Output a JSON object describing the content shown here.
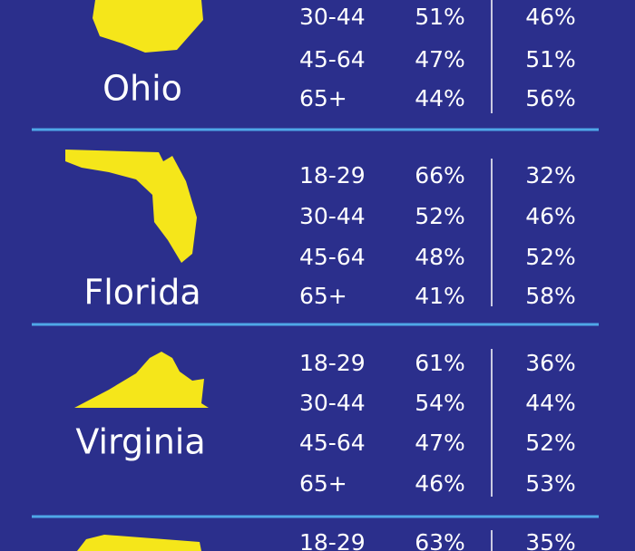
{
  "states": [
    {
      "name": "Ohio",
      "rows": [
        {
          "age": "30-44",
          "dem": "51%",
          "rep": "46%",
          "dem_color": "#2ea8e6",
          "rep_color": "#ffffff"
        },
        {
          "age": "45-64",
          "dem": "47%",
          "rep": "51%",
          "dem_color": "#ffffff",
          "rep_color": "#e0283c"
        },
        {
          "age": "65+",
          "dem": "44%",
          "rep": "56%",
          "dem_color": "#ffffff",
          "rep_color": "#e0283c"
        }
      ]
    },
    {
      "name": "Florida",
      "rows": [
        {
          "age": "18-29",
          "dem": "66%",
          "rep": "32%",
          "dem_color": "#2ea8e6",
          "rep_color": "#ffffff"
        },
        {
          "age": "30-44",
          "dem": "52%",
          "rep": "46%",
          "dem_color": "#2ea8e6",
          "rep_color": "#ffffff"
        },
        {
          "age": "45-64",
          "dem": "48%",
          "rep": "52%",
          "dem_color": "#ffffff",
          "rep_color": "#e0283c"
        },
        {
          "age": "65+",
          "dem": "41%",
          "rep": "58%",
          "dem_color": "#ffffff",
          "rep_color": "#e0283c"
        }
      ]
    },
    {
      "name": "Virginia",
      "rows": [
        {
          "age": "18-29",
          "dem": "61%",
          "rep": "36%",
          "dem_color": "#2ea8e6",
          "rep_color": "#ffffff"
        },
        {
          "age": "30-44",
          "dem": "54%",
          "rep": "44%",
          "dem_color": "#2ea8e6",
          "rep_color": "#ffffff"
        },
        {
          "age": "45-64",
          "dem": "47%",
          "rep": "52%",
          "dem_color": "#ffffff",
          "rep_color": "#e0283c"
        },
        {
          "age": "65+",
          "dem": "46%",
          "rep": "53%",
          "dem_color": "#ffffff",
          "rep_color": "#e0283c"
        }
      ]
    },
    {
      "rows": [
        {
          "age": "18-29",
          "dem": "63%",
          "rep": "35%",
          "dem_color": "#2ea8e6",
          "rep_color": "#ffffff"
        }
      ]
    }
  ]
}
